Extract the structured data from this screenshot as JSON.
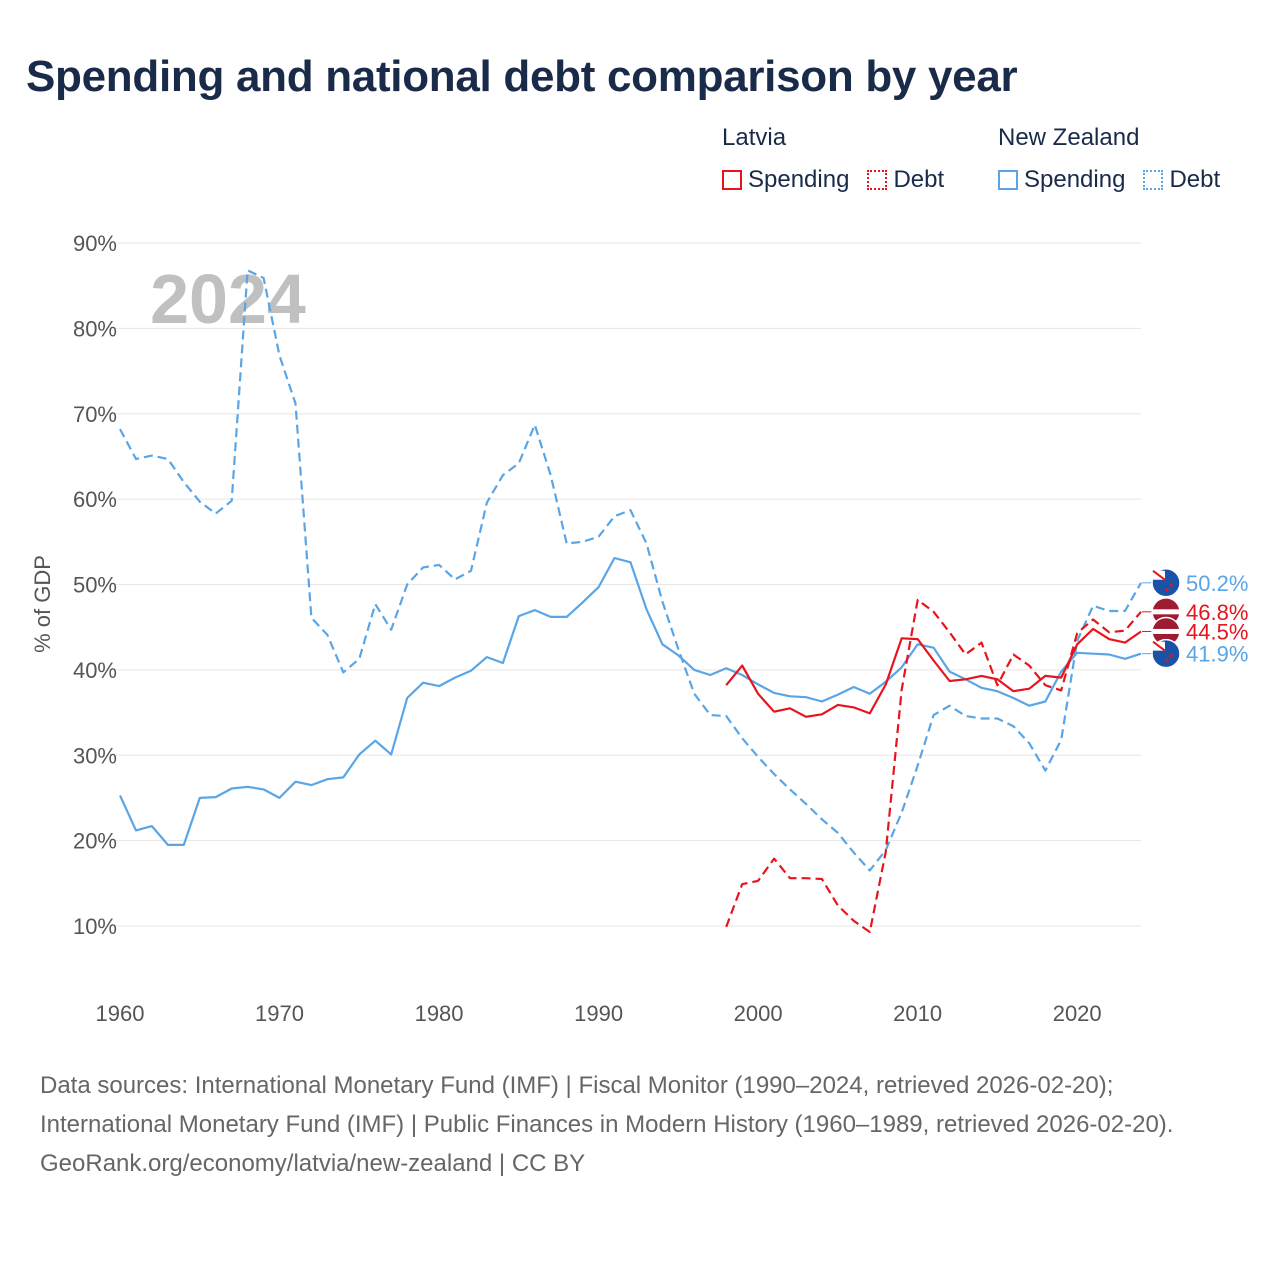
{
  "title": "Spending and national debt comparison by year",
  "legend": {
    "groups": [
      {
        "name": "Latvia",
        "items": [
          {
            "label": "Spending",
            "style": "solid",
            "color": "#e8141d"
          },
          {
            "label": "Debt",
            "style": "dotted",
            "color": "#e8141d"
          }
        ]
      },
      {
        "name": "New Zealand",
        "items": [
          {
            "label": "Spending",
            "style": "solid",
            "color": "#5aa5e6"
          },
          {
            "label": "Debt",
            "style": "dotted",
            "color": "#5aa5e6"
          }
        ]
      }
    ]
  },
  "chart_data": {
    "type": "line",
    "title": "Spending and national debt comparison by year",
    "ylabel": "% of GDP",
    "xlabel": "",
    "year_label": "2024",
    "xlim": [
      1960,
      2024
    ],
    "ylim": [
      5,
      90
    ],
    "x_ticks": [
      1960,
      1970,
      1980,
      1990,
      2000,
      2010,
      2020
    ],
    "y_ticks": [
      10,
      20,
      30,
      40,
      50,
      60,
      70,
      80,
      90
    ],
    "y_tick_labels": [
      "10%",
      "20%",
      "30%",
      "40%",
      "50%",
      "60%",
      "70%",
      "80%",
      "90%"
    ],
    "series": [
      {
        "name": "New Zealand Debt",
        "country": "New Zealand",
        "measure": "Debt",
        "color": "#5aa5e6",
        "dash": true,
        "start": 1960,
        "values": [
          68.2,
          64.7,
          65.1,
          64.7,
          62.0,
          59.7,
          58.3,
          59.8,
          86.8,
          85.9,
          76.8,
          71.2,
          46.1,
          44.1,
          39.7,
          41.3,
          47.7,
          44.7,
          50.0,
          52.0,
          52.3,
          50.6,
          51.6,
          59.6,
          62.8,
          64.2,
          68.7,
          62.8,
          54.8,
          55.0,
          55.6,
          58.0,
          58.7,
          54.8,
          48.0,
          42.4,
          37.2,
          34.7,
          34.6,
          32.0,
          29.8,
          27.8,
          26.0,
          24.3,
          22.5,
          20.9,
          18.6,
          16.5,
          18.9,
          23.3,
          28.8,
          34.7,
          35.8,
          34.6,
          34.3,
          34.3,
          33.4,
          31.4,
          28.2,
          31.8,
          43.4,
          47.5,
          46.9,
          46.9,
          50.2
        ]
      },
      {
        "name": "New Zealand Spending",
        "country": "New Zealand",
        "measure": "Spending",
        "color": "#5aa5e6",
        "dash": false,
        "start": 1960,
        "values": [
          25.3,
          21.2,
          21.7,
          19.5,
          19.5,
          25.0,
          25.1,
          26.1,
          26.3,
          26.0,
          25.0,
          26.9,
          26.5,
          27.2,
          27.4,
          30.1,
          31.7,
          30.1,
          36.7,
          38.5,
          38.1,
          39.1,
          39.9,
          41.5,
          40.8,
          46.3,
          47.0,
          46.2,
          46.2,
          47.9,
          49.7,
          53.1,
          52.6,
          47.1,
          43.0,
          41.7,
          40.0,
          39.4,
          40.2,
          39.4,
          38.3,
          37.3,
          36.9,
          36.8,
          36.3,
          37.1,
          38.0,
          37.2,
          38.6,
          40.3,
          43.0,
          42.6,
          39.8,
          38.9,
          37.9,
          37.5,
          36.7,
          35.8,
          36.3,
          39.8,
          42.0,
          41.9,
          41.8,
          41.3,
          41.9
        ]
      },
      {
        "name": "Latvia Debt",
        "country": "Latvia",
        "measure": "Debt",
        "color": "#e8141d",
        "dash": true,
        "start": 1998,
        "values": [
          9.9,
          14.9,
          15.3,
          17.9,
          15.6,
          15.6,
          15.5,
          12.4,
          10.6,
          9.3,
          18.7,
          37.7,
          48.2,
          46.8,
          44.4,
          41.8,
          43.2,
          38.2,
          41.8,
          40.5,
          38.2,
          37.6,
          44.3,
          45.9,
          44.4,
          44.6,
          46.8
        ]
      },
      {
        "name": "Latvia Spending",
        "country": "Latvia",
        "measure": "Spending",
        "color": "#e8141d",
        "dash": false,
        "start": 1998,
        "values": [
          38.2,
          40.5,
          37.2,
          35.1,
          35.5,
          34.5,
          34.8,
          35.9,
          35.6,
          34.9,
          38.3,
          43.7,
          43.6,
          41.1,
          38.7,
          38.9,
          39.3,
          38.9,
          37.5,
          37.8,
          39.3,
          39.1,
          43.0,
          44.8,
          43.6,
          43.2,
          44.5
        ]
      }
    ],
    "end_labels": [
      {
        "text": "50.2%",
        "country": "New Zealand",
        "value": 50.2,
        "color": "#5aa5e6"
      },
      {
        "text": "46.8%",
        "country": "Latvia",
        "value": 46.8,
        "color": "#e8141d"
      },
      {
        "text": "44.5%",
        "country": "Latvia",
        "value": 44.5,
        "color": "#e8141d"
      },
      {
        "text": "41.9%",
        "country": "New Zealand",
        "value": 41.9,
        "color": "#5aa5e6"
      }
    ]
  },
  "footer": {
    "sources": "Data sources: International Monetary Fund (IMF) | Fiscal Monitor (1990–2024, retrieved 2026-02-20); International Monetary Fund (IMF) | Public Finances in Modern History (1960–1989, retrieved 2026-02-20).",
    "credit": "GeoRank.org/economy/latvia/new-zealand | CC BY"
  },
  "colors": {
    "title": "#1a2b4a",
    "latvia": "#e8141d",
    "new_zealand": "#5aa5e6",
    "grid": "#e6e6e6"
  }
}
